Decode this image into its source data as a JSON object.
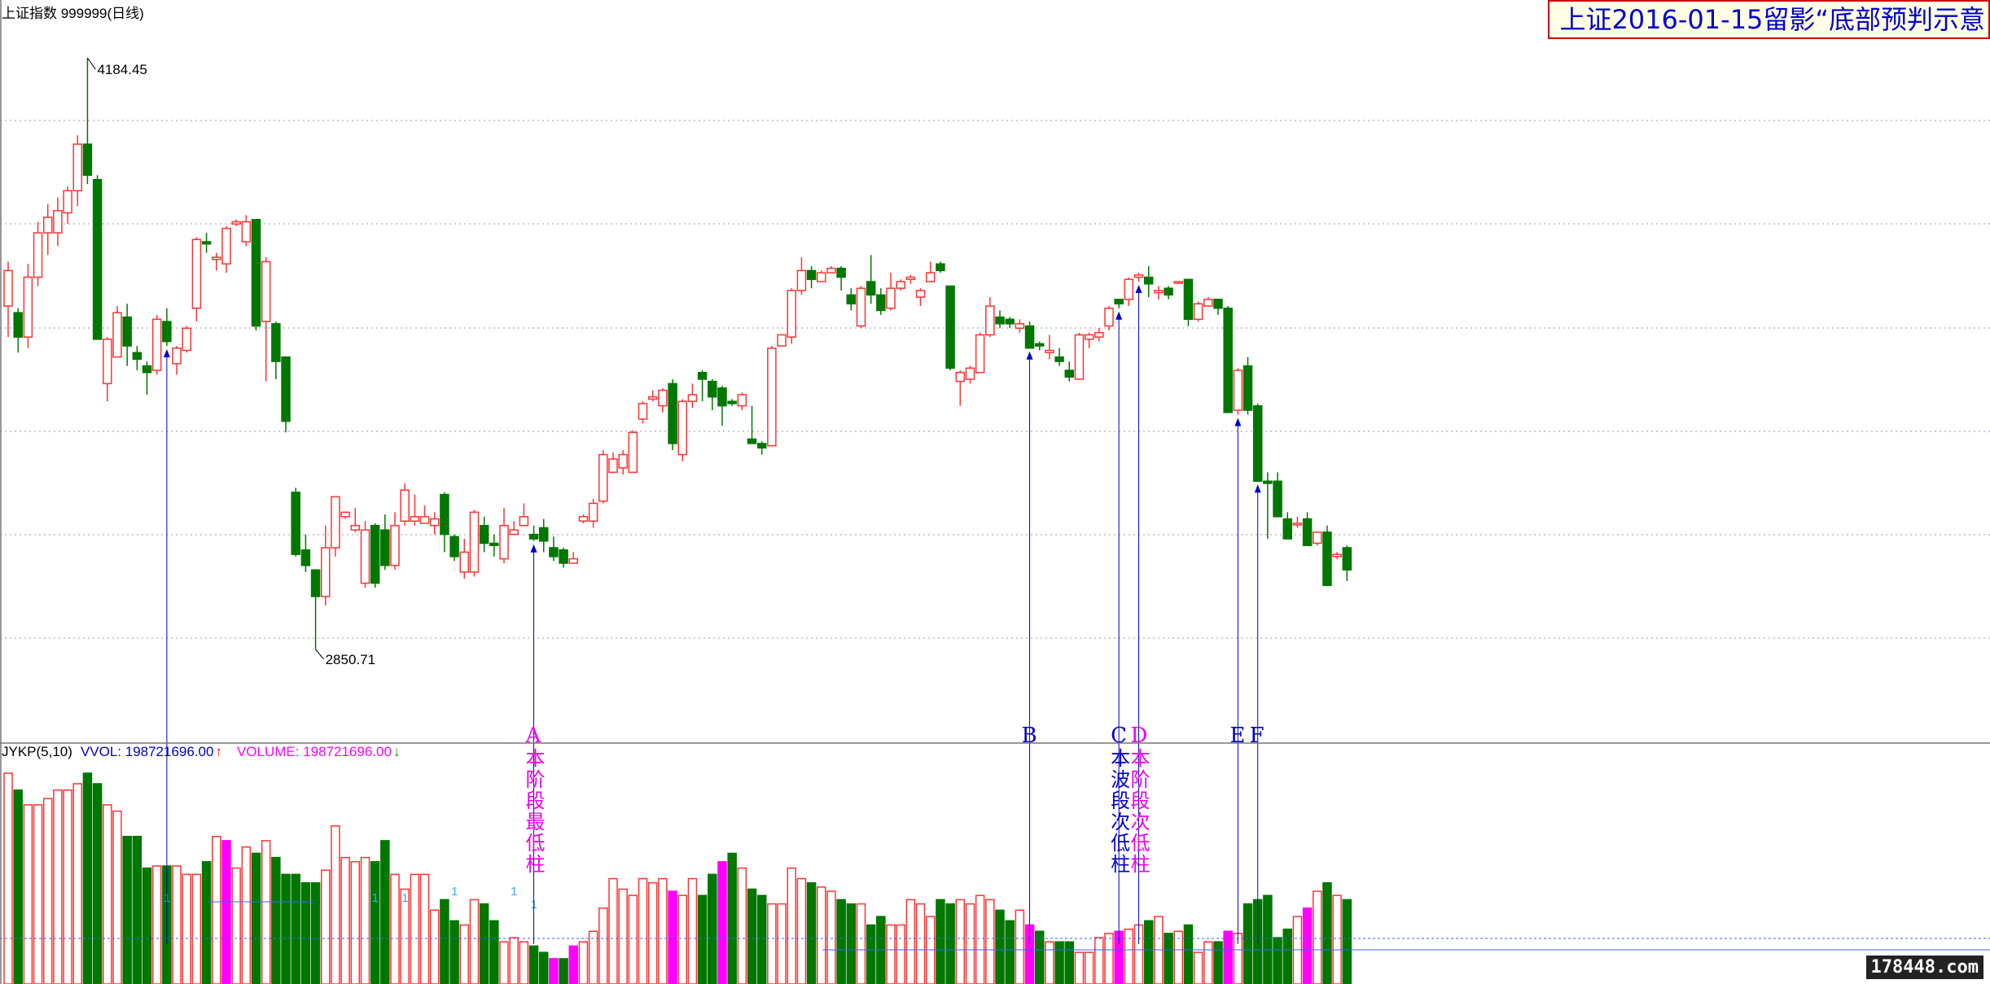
{
  "header": {
    "index_name": "上证指数",
    "code": "999999",
    "period": "(日线)",
    "title_banner": "上证2016-01-15留影“底部预判示意"
  },
  "volume_header": {
    "indicator": "JYKP(5,10)",
    "vvol": "VVOL: 198721696.00",
    "vvol_arrow": "↑",
    "volume": "VOLUME: 198721696.00",
    "volume_arrow": "↓"
  },
  "colors": {
    "up": "#ff3333",
    "down": "#007700",
    "highlight": "#ff00ff",
    "grid": "#9999aa",
    "annotation_blue": "#0000cc",
    "annotation_magenta": "#ee00ee"
  },
  "watermark": "178448.com",
  "chart_data": {
    "type": "candlestick",
    "title": "上证指数 999999(日线)",
    "high_label": "4184.45",
    "low_label": "2850.71",
    "ylim": [
      2700,
      4260
    ],
    "candles": [
      [
        3625,
        3705,
        3555,
        3725
      ],
      [
        3610,
        3555,
        3520,
        3620
      ],
      [
        3555,
        3690,
        3530,
        3720
      ],
      [
        3690,
        3790,
        3670,
        3815
      ],
      [
        3790,
        3825,
        3740,
        3855
      ],
      [
        3790,
        3840,
        3760,
        3870
      ],
      [
        3835,
        3885,
        3810,
        3895
      ],
      [
        3885,
        3990,
        3850,
        4010
      ],
      [
        3990,
        3920,
        3900,
        4184.45
      ],
      [
        3910,
        3550,
        3550,
        3920
      ],
      [
        3450,
        3550,
        3410,
        3555
      ],
      [
        3510,
        3610,
        3510,
        3625
      ],
      [
        3600,
        3535,
        3490,
        3630
      ],
      [
        3520,
        3505,
        3480,
        3535
      ],
      [
        3490,
        3475,
        3425,
        3500
      ],
      [
        3480,
        3595,
        3470,
        3605
      ],
      [
        3590,
        3545,
        3535,
        3620
      ],
      [
        3495,
        3530,
        3470,
        3535
      ],
      [
        3525,
        3575,
        3520,
        3580
      ],
      [
        3620,
        3775,
        3590,
        3780
      ],
      [
        3770,
        3765,
        3745,
        3790
      ],
      [
        3730,
        3735,
        3705,
        3745
      ],
      [
        3720,
        3800,
        3700,
        3805
      ],
      [
        3810,
        3815,
        3805,
        3820
      ],
      [
        3770,
        3815,
        3760,
        3830
      ],
      [
        3820,
        3580,
        3570,
        3820
      ],
      [
        3590,
        3725,
        3455,
        3735
      ],
      [
        3585,
        3500,
        3460,
        3590
      ],
      [
        3510,
        3365,
        3340,
        3510
      ],
      [
        3205,
        3065,
        3060,
        3215
      ],
      [
        3075,
        3040,
        3025,
        3110
      ],
      [
        3030,
        2970,
        2850.71,
        3030
      ],
      [
        2970,
        3080,
        2950,
        3130
      ],
      [
        3080,
        3195,
        3060,
        3195
      ],
      [
        3150,
        3160,
        3145,
        3155
      ],
      [
        3120,
        3130,
        3115,
        3170
      ],
      [
        3000,
        3120,
        2990,
        3140
      ],
      [
        3130,
        3000,
        2990,
        3135
      ],
      [
        3120,
        3040,
        3030,
        3155
      ],
      [
        3040,
        3130,
        3030,
        3160
      ],
      [
        3140,
        3210,
        3130,
        3225
      ],
      [
        3140,
        3150,
        3130,
        3200
      ],
      [
        3135,
        3150,
        3135,
        3175
      ],
      [
        3130,
        3145,
        3110,
        3160
      ],
      [
        3200,
        3110,
        3070,
        3205
      ],
      [
        3105,
        3060,
        3050,
        3110
      ],
      [
        3025,
        3070,
        3010,
        3100
      ],
      [
        3025,
        3160,
        3015,
        3165
      ],
      [
        3130,
        3090,
        3070,
        3150
      ],
      [
        3090,
        3085,
        3060,
        3110
      ],
      [
        3055,
        3130,
        3045,
        3170
      ],
      [
        3110,
        3120,
        3120,
        3140
      ],
      [
        3130,
        3150,
        3130,
        3180
      ],
      [
        3110,
        3100,
        3095,
        3130
      ],
      [
        3125,
        3095,
        3070,
        3145
      ],
      [
        3080,
        3060,
        3050,
        3105
      ],
      [
        3075,
        3045,
        3035,
        3080
      ],
      [
        3045,
        3055,
        3050,
        3070
      ],
      [
        3140,
        3150,
        3135,
        3155
      ],
      [
        3140,
        3180,
        3125,
        3190
      ],
      [
        3185,
        3290,
        3180,
        3300
      ],
      [
        3250,
        3280,
        3250,
        3295
      ],
      [
        3260,
        3290,
        3245,
        3300
      ],
      [
        3250,
        3340,
        3250,
        3345
      ],
      [
        3370,
        3405,
        3360,
        3410
      ],
      [
        3415,
        3420,
        3410,
        3435
      ],
      [
        3400,
        3435,
        3385,
        3440
      ],
      [
        3450,
        3315,
        3300,
        3460
      ],
      [
        3290,
        3410,
        3275,
        3415
      ],
      [
        3410,
        3425,
        3395,
        3450
      ],
      [
        3475,
        3460,
        3410,
        3480
      ],
      [
        3455,
        3420,
        3390,
        3460
      ],
      [
        3440,
        3400,
        3355,
        3445
      ],
      [
        3410,
        3405,
        3400,
        3415
      ],
      [
        3400,
        3425,
        3390,
        3430
      ],
      [
        3325,
        3315,
        3320,
        3400
      ],
      [
        3315,
        3305,
        3290,
        3320
      ],
      [
        3310,
        3530,
        3310,
        3535
      ],
      [
        3535,
        3560,
        3535,
        3560
      ],
      [
        3555,
        3660,
        3540,
        3665
      ],
      [
        3660,
        3705,
        3650,
        3735
      ],
      [
        3705,
        3685,
        3665,
        3715
      ],
      [
        3680,
        3700,
        3680,
        3705
      ],
      [
        3700,
        3710,
        3710,
        3715
      ],
      [
        3710,
        3690,
        3660,
        3715
      ],
      [
        3650,
        3630,
        3615,
        3665
      ],
      [
        3580,
        3665,
        3575,
        3670
      ],
      [
        3680,
        3650,
        3630,
        3740
      ],
      [
        3650,
        3615,
        3605,
        3665
      ],
      [
        3620,
        3665,
        3615,
        3700
      ],
      [
        3665,
        3680,
        3660,
        3685
      ],
      [
        3685,
        3690,
        3675,
        3695
      ],
      [
        3645,
        3660,
        3625,
        3665
      ],
      [
        3680,
        3700,
        3680,
        3725
      ],
      [
        3720,
        3705,
        3700,
        3725
      ],
      [
        3670,
        3485,
        3480,
        3670
      ],
      [
        3455,
        3475,
        3400,
        3480
      ],
      [
        3460,
        3485,
        3450,
        3490
      ],
      [
        3475,
        3560,
        3475,
        3565
      ],
      [
        3560,
        3625,
        3555,
        3645
      ],
      [
        3600,
        3585,
        3575,
        3615
      ],
      [
        3595,
        3585,
        3575,
        3600
      ],
      [
        3575,
        3585,
        3565,
        3595
      ],
      [
        3580,
        3530,
        3530,
        3590
      ],
      [
        3540,
        3535,
        3525,
        3545
      ],
      [
        3520,
        3525,
        3505,
        3560
      ],
      [
        3510,
        3500,
        3490,
        3530
      ],
      [
        3480,
        3465,
        3455,
        3500
      ],
      [
        3460,
        3560,
        3460,
        3565
      ],
      [
        3550,
        3560,
        3530,
        3565
      ],
      [
        3555,
        3565,
        3545,
        3575
      ],
      [
        3580,
        3620,
        3570,
        3625
      ],
      [
        3640,
        3630,
        3620,
        3640
      ],
      [
        3640,
        3685,
        3625,
        3690
      ],
      [
        3690,
        3695,
        3680,
        3700
      ],
      [
        3690,
        3675,
        3645,
        3715
      ],
      [
        3655,
        3660,
        3640,
        3670
      ],
      [
        3665,
        3650,
        3640,
        3670
      ],
      [
        3680,
        3680,
        3675,
        3680
      ],
      [
        3685,
        3595,
        3580,
        3685
      ],
      [
        3595,
        3630,
        3590,
        3635
      ],
      [
        3625,
        3640,
        3625,
        3645
      ],
      [
        3640,
        3620,
        3605,
        3640
      ],
      [
        3620,
        3385,
        3385,
        3625
      ],
      [
        3390,
        3480,
        3380,
        3485
      ],
      [
        3490,
        3390,
        3380,
        3510
      ],
      [
        3400,
        3230,
        3230,
        3405
      ],
      [
        3230,
        3225,
        3100,
        3250
      ],
      [
        3230,
        3150,
        3150,
        3250
      ],
      [
        3145,
        3100,
        3100,
        3160
      ],
      [
        3135,
        3135,
        3125,
        3150
      ],
      [
        3145,
        3085,
        3085,
        3160
      ],
      [
        3090,
        3115,
        3085,
        3115
      ],
      [
        3115,
        2995,
        2995,
        3130
      ],
      [
        3060,
        3065,
        3055,
        3070
      ],
      [
        3080,
        3030,
        3005,
        3085
      ]
    ],
    "volume_relative_height": [
      100,
      92,
      85,
      85,
      88,
      92,
      92,
      95,
      100,
      95,
      85,
      82,
      70,
      70,
      55,
      56,
      56,
      56,
      52,
      52,
      58,
      70,
      68,
      55,
      65,
      62,
      68,
      60,
      52,
      52,
      48,
      48,
      54,
      75,
      60,
      58,
      60,
      58,
      68,
      52,
      45,
      52,
      52,
      35,
      40,
      30,
      28,
      40,
      38,
      30,
      20,
      22,
      20,
      18,
      15,
      12,
      12,
      18,
      20,
      25,
      36,
      50,
      45,
      42,
      50,
      48,
      50,
      44,
      42,
      50,
      42,
      52,
      58,
      62,
      55,
      45,
      42,
      38,
      38,
      55,
      50,
      48,
      46,
      44,
      40,
      38,
      38,
      28,
      32,
      28,
      28,
      40,
      38,
      32,
      40,
      38,
      40,
      38,
      42,
      40,
      35,
      30,
      35,
      28,
      25,
      20,
      20,
      20,
      15,
      15,
      22,
      24,
      25,
      26,
      28,
      30,
      32,
      24,
      25,
      28,
      15,
      20,
      20,
      25,
      24,
      38,
      40,
      42,
      22,
      26,
      32,
      36,
      44,
      48,
      42,
      40
    ],
    "highlight_volume_bars": [
      22,
      55,
      57,
      67,
      72,
      103,
      112,
      123,
      131
    ],
    "arrow_candles": [
      16,
      53,
      103,
      112,
      114,
      124,
      126
    ],
    "annotations": [
      {
        "letter": "A",
        "text": [
          "本",
          "阶",
          "段",
          "最",
          "低",
          "柱"
        ],
        "color": "magenta",
        "candle": 53
      },
      {
        "letter": "B",
        "text": [],
        "color": "blue",
        "candle": 103
      },
      {
        "letter": "C",
        "text": [
          "本",
          "波",
          "段",
          "次",
          "低",
          "柱"
        ],
        "color": "blue",
        "candle": 112
      },
      {
        "letter": "D",
        "text": [
          "本",
          "阶",
          "段",
          "次",
          "低",
          "柱"
        ],
        "color": "magenta",
        "candle": 114
      },
      {
        "letter": "E",
        "text": [],
        "color": "blue",
        "candle": 124
      },
      {
        "letter": "F",
        "text": [],
        "color": "blue",
        "candle": 126
      }
    ],
    "volume_marks": [
      {
        "candle": 16,
        "text": "1"
      },
      {
        "candle": 37,
        "text": "1"
      },
      {
        "candle": 40,
        "text": "1"
      },
      {
        "candle": 45,
        "text": "1"
      },
      {
        "candle": 51,
        "text": "1"
      },
      {
        "candle": 53,
        "text": "1"
      }
    ]
  }
}
